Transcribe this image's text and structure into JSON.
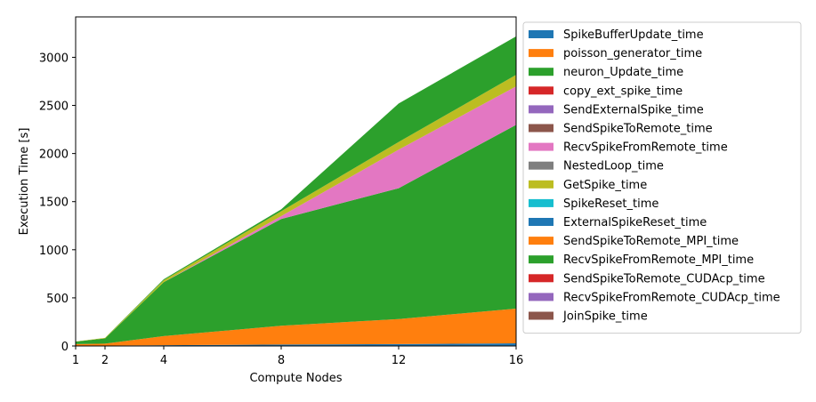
{
  "chart_data": {
    "type": "area",
    "stacked": true,
    "xlabel": "Compute Nodes",
    "ylabel": "Execution Time [s]",
    "x": [
      1,
      2,
      4,
      8,
      12,
      16
    ],
    "xticks": [
      "1",
      "2",
      "4",
      "8",
      "12",
      "16"
    ],
    "xlim": [
      1,
      16
    ],
    "ylim": [
      0,
      3420
    ],
    "yticks": [
      0,
      500,
      1000,
      1500,
      2000,
      2500,
      3000
    ],
    "legend_position": "outside-right",
    "grid": false,
    "series": [
      {
        "name": "SpikeBufferUpdate_time",
        "color": "#1f77b4",
        "values": [
          3,
          4,
          8,
          15,
          20,
          28
        ]
      },
      {
        "name": "poisson_generator_time",
        "color": "#ff7f0e",
        "values": [
          17,
          20,
          95,
          195,
          260,
          360
        ]
      },
      {
        "name": "neuron_Update_time",
        "color": "#2ca02c",
        "values": [
          25,
          55,
          560,
          1110,
          1360,
          1910
        ]
      },
      {
        "name": "copy_ext_spike_time",
        "color": "#d62728",
        "values": [
          0,
          0,
          0,
          0,
          0,
          0
        ]
      },
      {
        "name": "SendExternalSpike_time",
        "color": "#9467bd",
        "values": [
          0,
          0,
          0,
          0,
          0,
          0
        ]
      },
      {
        "name": "SendSpikeToRemote_time",
        "color": "#8c564b",
        "values": [
          0,
          0,
          0,
          0,
          0,
          0
        ]
      },
      {
        "name": "RecvSpikeFromRemote_time",
        "color": "#e377c2",
        "values": [
          0,
          0,
          0,
          30,
          400,
          400
        ]
      },
      {
        "name": "NestedLoop_time",
        "color": "#7f7f7f",
        "values": [
          0,
          0,
          0,
          0,
          0,
          0
        ]
      },
      {
        "name": "GetSpike_time",
        "color": "#bcbd22",
        "values": [
          2,
          5,
          20,
          50,
          80,
          120
        ]
      },
      {
        "name": "SpikeReset_time",
        "color": "#17becf",
        "values": [
          0,
          0,
          0,
          0,
          0,
          0
        ]
      },
      {
        "name": "ExternalSpikeReset_time",
        "color": "#1f77b4",
        "values": [
          0,
          0,
          0,
          0,
          0,
          0
        ]
      },
      {
        "name": "SendSpikeToRemote_MPI_time",
        "color": "#ff7f0e",
        "values": [
          0,
          0,
          0,
          0,
          0,
          0
        ]
      },
      {
        "name": "RecvSpikeFromRemote_MPI_time",
        "color": "#2ca02c",
        "values": [
          0,
          0,
          10,
          20,
          400,
          400
        ]
      },
      {
        "name": "SendSpikeToRemote_CUDAcp_time",
        "color": "#d62728",
        "values": [
          0,
          0,
          0,
          0,
          0,
          0
        ]
      },
      {
        "name": "RecvSpikeFromRemote_CUDAcp_time",
        "color": "#9467bd",
        "values": [
          0,
          0,
          0,
          0,
          0,
          0
        ]
      },
      {
        "name": "JoinSpike_time",
        "color": "#8c564b",
        "values": [
          0,
          0,
          0,
          0,
          0,
          0
        ]
      }
    ]
  }
}
